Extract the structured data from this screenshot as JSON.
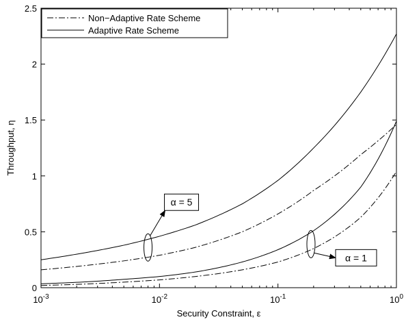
{
  "chart_data": {
    "type": "line",
    "title": "",
    "xlabel": "Security Constraint, ε",
    "ylabel": "Throughput, η",
    "xscale": "log",
    "xlim": [
      0.001,
      1
    ],
    "ylim": [
      0,
      2.5
    ],
    "grid": false,
    "legend_position": "top-left",
    "x_ticks": [
      0.001,
      0.01,
      0.1,
      1
    ],
    "x_tick_labels": [
      {
        "base": "10",
        "exp": "-3"
      },
      {
        "base": "10",
        "exp": "-2"
      },
      {
        "base": "10",
        "exp": "-1"
      },
      {
        "base": "10",
        "exp": "0"
      }
    ],
    "y_ticks": [
      0,
      0.5,
      1,
      1.5,
      2,
      2.5
    ],
    "y_tick_labels": [
      "0",
      "0.5",
      "1",
      "1.5",
      "2",
      "2.5"
    ],
    "legend": [
      {
        "label": "Non−Adaptive Rate Scheme",
        "style": "dashdot"
      },
      {
        "label": "Adaptive Rate Scheme",
        "style": "solid"
      }
    ],
    "series": [
      {
        "scheme": "Adaptive Rate Scheme",
        "alpha": "α = 5",
        "style": "solid",
        "x": [
          0.001,
          0.002,
          0.005,
          0.01,
          0.02,
          0.05,
          0.1,
          0.2,
          0.5,
          1
        ],
        "y": [
          0.25,
          0.3,
          0.38,
          0.46,
          0.56,
          0.75,
          0.96,
          1.25,
          1.75,
          2.27
        ]
      },
      {
        "scheme": "Non−Adaptive Rate Scheme",
        "alpha": "α = 5",
        "style": "dashdot",
        "x": [
          0.001,
          0.002,
          0.005,
          0.01,
          0.02,
          0.05,
          0.1,
          0.2,
          0.5,
          1
        ],
        "y": [
          0.16,
          0.19,
          0.24,
          0.29,
          0.36,
          0.5,
          0.66,
          0.87,
          1.19,
          1.46
        ]
      },
      {
        "scheme": "Adaptive Rate Scheme",
        "alpha": "α = 1",
        "style": "solid",
        "x": [
          0.001,
          0.002,
          0.005,
          0.01,
          0.02,
          0.05,
          0.1,
          0.2,
          0.5,
          1
        ],
        "y": [
          0.035,
          0.048,
          0.075,
          0.1,
          0.14,
          0.23,
          0.34,
          0.51,
          0.9,
          1.49
        ]
      },
      {
        "scheme": "Non−Adaptive Rate Scheme",
        "alpha": "α = 1",
        "style": "dashdot",
        "x": [
          0.001,
          0.002,
          0.005,
          0.01,
          0.02,
          0.05,
          0.1,
          0.2,
          0.5,
          1
        ],
        "y": [
          0.02,
          0.03,
          0.05,
          0.07,
          0.1,
          0.16,
          0.23,
          0.35,
          0.63,
          1.04
        ]
      }
    ],
    "annotations": [
      {
        "text": "α = 5",
        "ellipse_x": 0.008,
        "ellipse_y": 0.36,
        "direction": "up-right"
      },
      {
        "text": "α = 1",
        "ellipse_x": 0.19,
        "ellipse_y": 0.39,
        "direction": "down-right"
      }
    ]
  }
}
